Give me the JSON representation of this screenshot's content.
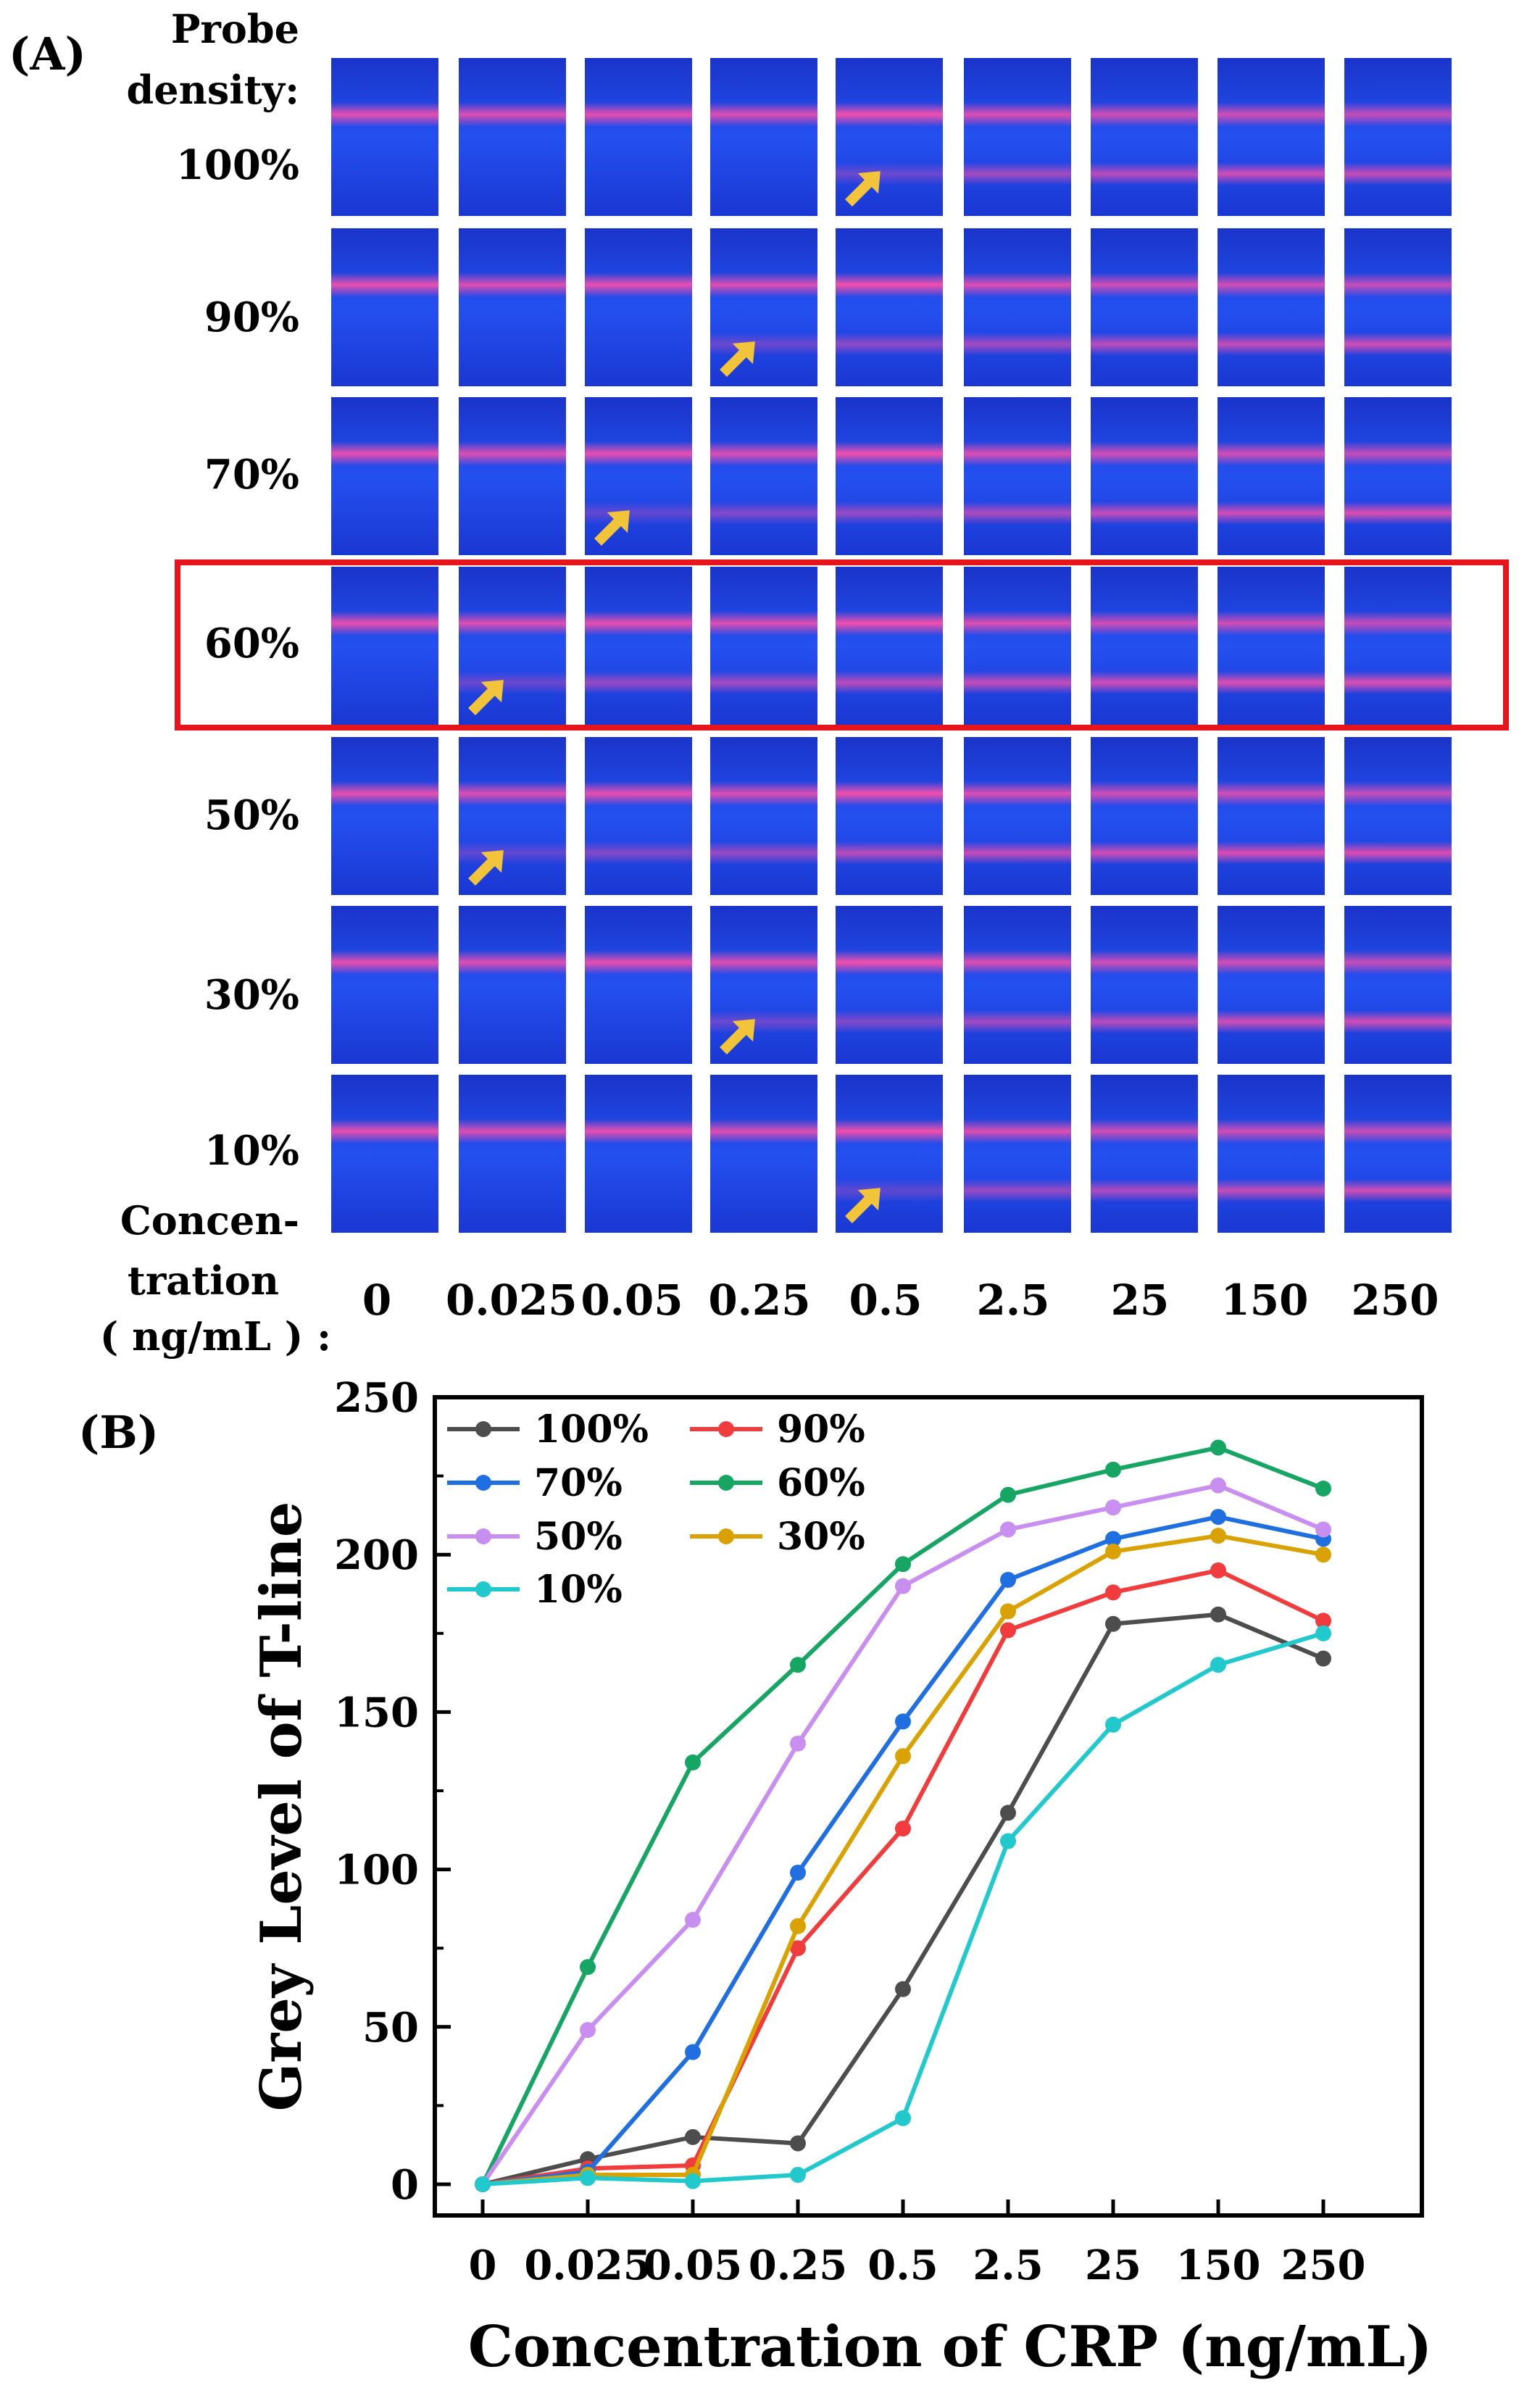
{
  "panel_a": {
    "label": "(A)",
    "header_line1": "Probe",
    "header_line2": "density:",
    "rows": [
      "100%",
      "90%",
      "70%",
      "60%",
      "50%",
      "30%",
      "10%"
    ],
    "conc_header_line1": "Concen-",
    "conc_header_line2": "tration",
    "conc_header_line3": "( ng/mL ) :",
    "columns": [
      "0",
      "0.025",
      "0.05",
      "0.25",
      "0.5",
      "2.5",
      "25",
      "150",
      "250"
    ],
    "highlight_row": "60%",
    "colors": {
      "strip_blue": "#1f3fe0",
      "band_pink": "#ff4fa8",
      "arrow": "#f2c43a",
      "highlight": "#e8141b"
    }
  },
  "panel_b": {
    "label": "(B)"
  },
  "chart_data": {
    "type": "line",
    "xlabel": "Concentration of CRP (ng/mL)",
    "ylabel": "Grey Level of T-line",
    "categories": [
      "0",
      "0.025",
      "0.05",
      "0.25",
      "0.5",
      "2.5",
      "25",
      "150",
      "250"
    ],
    "ylim": [
      0,
      250
    ],
    "yticks": [
      "0",
      "50",
      "100",
      "150",
      "200",
      "250"
    ],
    "grid": false,
    "legend": "top-left",
    "series": [
      {
        "name": "100%",
        "color": "#4d4d4d",
        "values": [
          0,
          8,
          15,
          13,
          62,
          118,
          178,
          181,
          167
        ]
      },
      {
        "name": "90%",
        "color": "#f03c3c",
        "values": [
          0,
          5,
          6,
          75,
          113,
          176,
          188,
          195,
          179
        ]
      },
      {
        "name": "70%",
        "color": "#1f6fe0",
        "values": [
          0,
          4,
          42,
          99,
          147,
          192,
          205,
          212,
          205
        ]
      },
      {
        "name": "60%",
        "color": "#17a564",
        "values": [
          0,
          69,
          134,
          165,
          197,
          219,
          227,
          234,
          221
        ]
      },
      {
        "name": "50%",
        "color": "#c88ef0",
        "values": [
          0,
          49,
          84,
          140,
          190,
          208,
          215,
          222,
          208
        ]
      },
      {
        "name": "30%",
        "color": "#d9a200",
        "values": [
          0,
          3,
          3,
          82,
          136,
          182,
          201,
          206,
          200
        ]
      },
      {
        "name": "10%",
        "color": "#22c9cc",
        "values": [
          0,
          2,
          1,
          3,
          21,
          109,
          146,
          165,
          175
        ]
      }
    ]
  }
}
